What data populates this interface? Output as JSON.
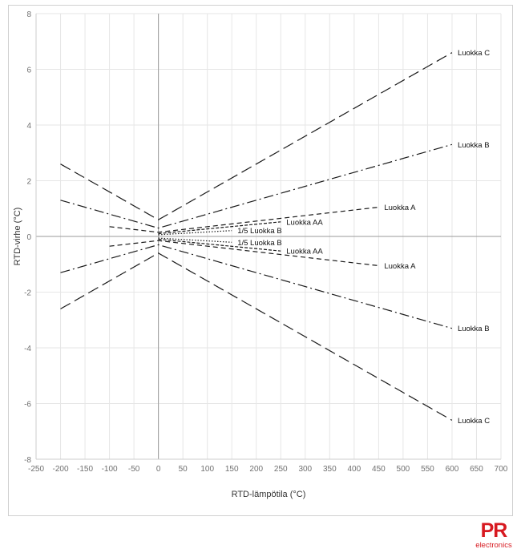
{
  "chart_data": {
    "type": "line",
    "title": "",
    "xlabel": "RTD-lämpötila (°C)",
    "ylabel": "RTD-virhe (°C)",
    "xlim": [
      -250,
      700
    ],
    "ylim": [
      -8,
      8
    ],
    "x_ticks": [
      -250,
      -200,
      -150,
      -100,
      -50,
      0,
      50,
      100,
      150,
      200,
      250,
      300,
      350,
      400,
      450,
      500,
      550,
      600,
      650,
      700
    ],
    "y_ticks": [
      -8,
      -6,
      -4,
      -2,
      0,
      2,
      4,
      6,
      8
    ],
    "grid": true,
    "legend": "none",
    "series": [
      {
        "name": "Luokka C",
        "style": "long-dash",
        "label_at": "end",
        "x": [
          -200,
          0,
          600
        ],
        "y": [
          2.6,
          0.6,
          6.6
        ]
      },
      {
        "name": "Luokka C",
        "style": "long-dash",
        "label_at": "end",
        "x": [
          -200,
          0,
          600
        ],
        "y": [
          -2.6,
          -0.6,
          -6.6
        ]
      },
      {
        "name": "Luokka B",
        "style": "dash-dot",
        "label_at": "end",
        "x": [
          -200,
          0,
          600
        ],
        "y": [
          1.3,
          0.3,
          3.3
        ]
      },
      {
        "name": "Luokka B",
        "style": "dash-dot",
        "label_at": "end",
        "x": [
          -200,
          0,
          600
        ],
        "y": [
          -1.3,
          -0.3,
          -3.3
        ]
      },
      {
        "name": "Luokka A",
        "style": "short-dash",
        "label_at": "end",
        "x": [
          -100,
          0,
          450
        ],
        "y": [
          0.35,
          0.15,
          1.05
        ]
      },
      {
        "name": "Luokka A",
        "style": "short-dash",
        "label_at": "end",
        "x": [
          -100,
          0,
          450
        ],
        "y": [
          -0.35,
          -0.15,
          -1.05
        ]
      },
      {
        "name": "Luokka AA",
        "style": "dense-dash",
        "label_at": "end",
        "x": [
          0,
          250
        ],
        "y": [
          0.1,
          0.525
        ]
      },
      {
        "name": "Luokka AA",
        "style": "dense-dash",
        "label_at": "end",
        "x": [
          0,
          250
        ],
        "y": [
          -0.1,
          -0.525
        ]
      },
      {
        "name": "1/5 Luokka B",
        "style": "dotted",
        "label_at": "end",
        "x": [
          0,
          150
        ],
        "y": [
          0.06,
          0.21
        ]
      },
      {
        "name": "1/5 Luokka B",
        "style": "dotted",
        "label_at": "end",
        "x": [
          0,
          150
        ],
        "y": [
          -0.06,
          -0.21
        ]
      }
    ]
  },
  "logo": {
    "mark": "PR",
    "sub": "electronics"
  }
}
